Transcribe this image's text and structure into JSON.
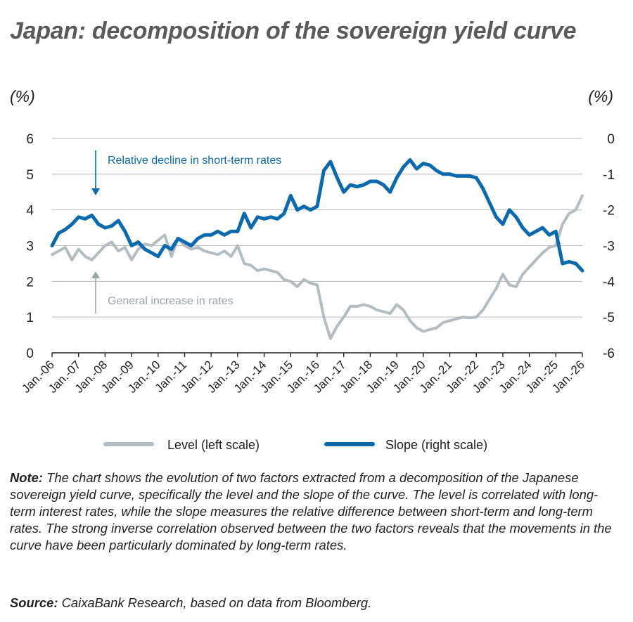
{
  "title": "Japan: decomposition of the sovereign yield curve",
  "unit_left": "(%)",
  "unit_right": "(%)",
  "note_label": "Note:",
  "note_text": " The chart shows the evolution of two factors extracted from a decomposition of the Japanese sovereign yield curve, specifically the level and the slope of the curve. The level is correlated with long-term interest rates, while the slope measures the relative difference between short-term and long-term rates. The strong inverse correlation observed between the two factors reveals that the movements in the curve have been particularly dominated by long-term rates.",
  "source_label": "Source:",
  "source_text": " CaixaBank Research, based on data from Bloomberg.",
  "colors": {
    "level": "#b3bdc1",
    "slope": "#0a6aad",
    "grid": "#b9b9b9",
    "axis": "#222222",
    "annotation_top": "#0a6aad",
    "annotation_bottom": "#9aa5a9"
  },
  "chart_data": {
    "type": "line",
    "x_tick_labels": [
      "Jan.-06",
      "Jan.-07",
      "Jan.-08",
      "Jan.-09",
      "Jan.-10",
      "Jan.-11",
      "Jan.-12",
      "Jan.-13",
      "Jan.-14",
      "Jan.-15",
      "Jan.-16",
      "Jan.-17",
      "Jan.-18",
      "Jan.-19",
      "Jan.-20",
      "Jan.-21",
      "Jan.-22",
      "Jan.-23",
      "Jan.-24",
      "Jan.-25",
      "Jan.-26"
    ],
    "y_left": {
      "label": "(%)",
      "ylim": [
        0,
        6
      ],
      "ticks": [
        "0",
        "1",
        "2",
        "3",
        "4",
        "5",
        "6"
      ]
    },
    "y_right": {
      "label": "(%)",
      "ylim": [
        -6,
        0
      ],
      "ticks": [
        "-6",
        "-5",
        "-4",
        "-3",
        "-2",
        "-1",
        "0"
      ]
    },
    "grid": true,
    "legend_position": "bottom",
    "annotations": [
      {
        "text": "Relative decline in short-term rates",
        "arrow": "down"
      },
      {
        "text": "General increase in rates",
        "arrow": "up"
      }
    ],
    "series": [
      {
        "name": "Level (left scale)",
        "axis": "left",
        "x": [
          2006.0,
          2006.25,
          2006.5,
          2006.75,
          2007.0,
          2007.25,
          2007.5,
          2007.75,
          2008.0,
          2008.25,
          2008.5,
          2008.75,
          2009.0,
          2009.25,
          2009.5,
          2009.75,
          2010.0,
          2010.25,
          2010.5,
          2010.75,
          2011.0,
          2011.25,
          2011.5,
          2011.75,
          2012.0,
          2012.25,
          2012.5,
          2012.75,
          2013.0,
          2013.25,
          2013.5,
          2013.75,
          2014.0,
          2014.25,
          2014.5,
          2014.75,
          2015.0,
          2015.25,
          2015.5,
          2015.75,
          2016.0,
          2016.25,
          2016.5,
          2016.75,
          2017.0,
          2017.25,
          2017.5,
          2017.75,
          2018.0,
          2018.25,
          2018.5,
          2018.75,
          2019.0,
          2019.25,
          2019.5,
          2019.75,
          2020.0,
          2020.25,
          2020.5,
          2020.75,
          2021.0,
          2021.25,
          2021.5,
          2021.75,
          2022.0,
          2022.25,
          2022.5,
          2022.75,
          2023.0,
          2023.25,
          2023.5,
          2023.75,
          2024.0,
          2024.25,
          2024.5,
          2024.75,
          2025.0,
          2025.25,
          2025.5,
          2025.75,
          2026.0
        ],
        "values": [
          2.75,
          2.85,
          2.95,
          2.6,
          2.9,
          2.7,
          2.6,
          2.8,
          3.0,
          3.1,
          2.85,
          2.95,
          2.6,
          2.9,
          3.05,
          3.0,
          3.15,
          3.3,
          2.7,
          3.2,
          3.0,
          2.9,
          2.95,
          2.85,
          2.8,
          2.75,
          2.85,
          2.7,
          3.0,
          2.5,
          2.45,
          2.3,
          2.35,
          2.3,
          2.25,
          2.05,
          2.0,
          1.85,
          2.05,
          1.95,
          1.9,
          1.0,
          0.4,
          0.75,
          1.0,
          1.3,
          1.3,
          1.35,
          1.3,
          1.2,
          1.15,
          1.1,
          1.35,
          1.2,
          0.9,
          0.7,
          0.6,
          0.65,
          0.7,
          0.85,
          0.9,
          0.95,
          1.0,
          0.98,
          1.0,
          1.2,
          1.5,
          1.8,
          2.2,
          1.9,
          1.85,
          2.2,
          2.4,
          2.6,
          2.8,
          2.95,
          3.0,
          3.6,
          3.9,
          4.0,
          4.4
        ]
      },
      {
        "name": "Slope (right scale)",
        "axis": "right",
        "x": [
          2006.0,
          2006.25,
          2006.5,
          2006.75,
          2007.0,
          2007.25,
          2007.5,
          2007.75,
          2008.0,
          2008.25,
          2008.5,
          2008.75,
          2009.0,
          2009.25,
          2009.5,
          2009.75,
          2010.0,
          2010.25,
          2010.5,
          2010.75,
          2011.0,
          2011.25,
          2011.5,
          2011.75,
          2012.0,
          2012.25,
          2012.5,
          2012.75,
          2013.0,
          2013.25,
          2013.5,
          2013.75,
          2014.0,
          2014.25,
          2014.5,
          2014.75,
          2015.0,
          2015.25,
          2015.5,
          2015.75,
          2016.0,
          2016.25,
          2016.5,
          2016.75,
          2017.0,
          2017.25,
          2017.5,
          2017.75,
          2018.0,
          2018.25,
          2018.5,
          2018.75,
          2019.0,
          2019.25,
          2019.5,
          2019.75,
          2020.0,
          2020.25,
          2020.5,
          2020.75,
          2021.0,
          2021.25,
          2021.5,
          2021.75,
          2022.0,
          2022.25,
          2022.5,
          2022.75,
          2023.0,
          2023.25,
          2023.5,
          2023.75,
          2024.0,
          2024.25,
          2024.5,
          2024.75,
          2025.0,
          2025.25,
          2025.5,
          2025.75,
          2026.0
        ],
        "values": [
          -3.0,
          -2.65,
          -2.55,
          -2.4,
          -2.2,
          -2.25,
          -2.15,
          -2.4,
          -2.5,
          -2.45,
          -2.3,
          -2.6,
          -3.0,
          -2.9,
          -3.1,
          -3.2,
          -3.3,
          -3.0,
          -3.1,
          -2.8,
          -2.9,
          -3.0,
          -2.8,
          -2.7,
          -2.7,
          -2.6,
          -2.7,
          -2.6,
          -2.6,
          -2.1,
          -2.5,
          -2.2,
          -2.25,
          -2.2,
          -2.25,
          -2.1,
          -1.6,
          -2.0,
          -1.9,
          -2.0,
          -1.9,
          -0.9,
          -0.65,
          -1.1,
          -1.5,
          -1.3,
          -1.35,
          -1.3,
          -1.2,
          -1.2,
          -1.3,
          -1.5,
          -1.1,
          -0.8,
          -0.6,
          -0.85,
          -0.7,
          -0.75,
          -0.9,
          -1.0,
          -1.0,
          -1.05,
          -1.05,
          -1.05,
          -1.1,
          -1.4,
          -1.8,
          -2.2,
          -2.4,
          -2.0,
          -2.2,
          -2.5,
          -2.7,
          -2.6,
          -2.5,
          -2.7,
          -2.6,
          -3.5,
          -3.45,
          -3.5,
          -3.7
        ]
      }
    ]
  }
}
